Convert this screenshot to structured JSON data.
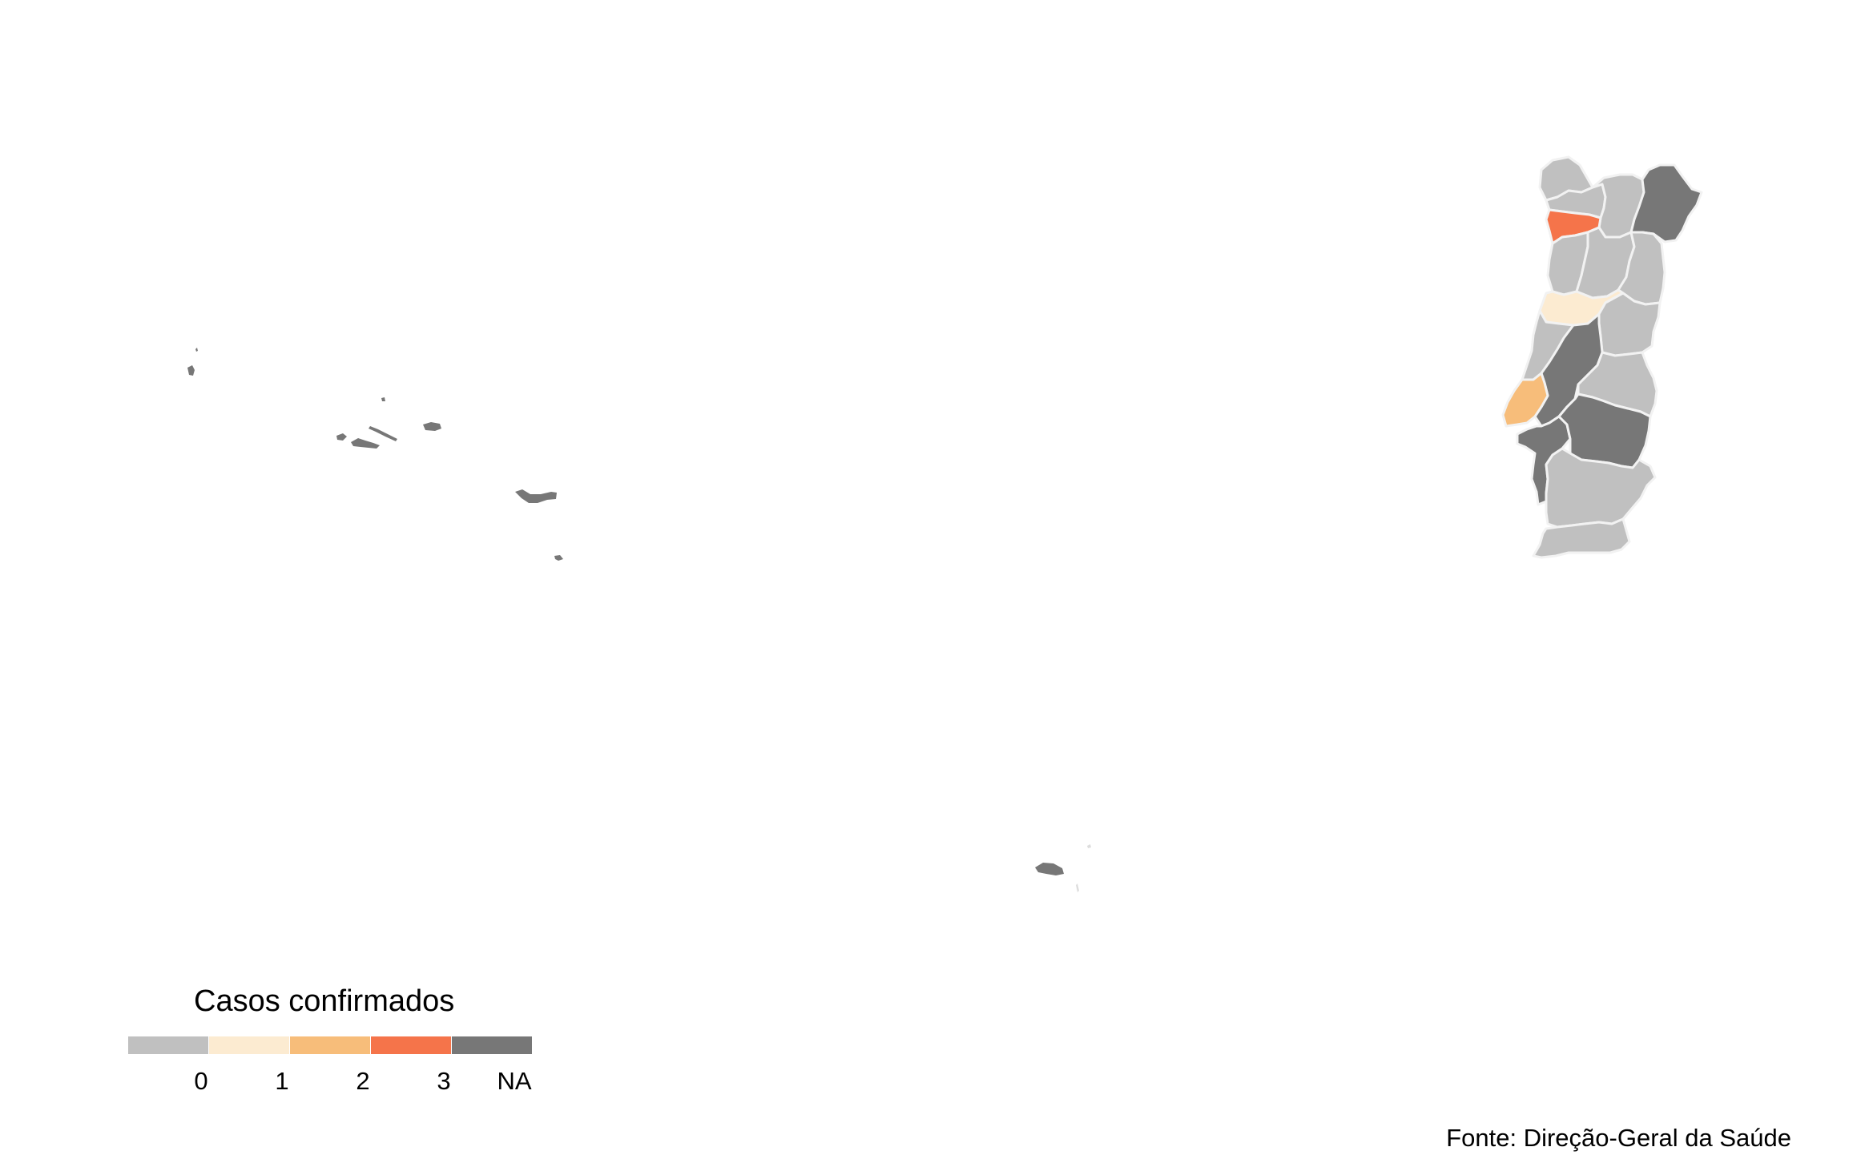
{
  "map": {
    "legend": {
      "title": "Casos confirmados",
      "items": [
        {
          "label": "",
          "color": "#c0c0c0"
        },
        {
          "label": "0",
          "color": "#fcebd1"
        },
        {
          "label": "1",
          "color": "#f7bd7a"
        },
        {
          "label": "2",
          "color": "#f5744a"
        },
        {
          "label": "3",
          "color": "#777777"
        }
      ],
      "na_label": "NA"
    },
    "caption": "Fonte: Direção-Geral da Saúde",
    "regions": [
      {
        "name": "Viana do Castelo",
        "value": 0
      },
      {
        "name": "Braga",
        "value": 0
      },
      {
        "name": "Vila Real",
        "value": 0
      },
      {
        "name": "Bragança",
        "value": "NA"
      },
      {
        "name": "Porto",
        "value": 3
      },
      {
        "name": "Aveiro",
        "value": 0
      },
      {
        "name": "Viseu",
        "value": 0
      },
      {
        "name": "Guarda",
        "value": 0
      },
      {
        "name": "Coimbra",
        "value": 1
      },
      {
        "name": "Castelo Branco",
        "value": 0
      },
      {
        "name": "Leiria",
        "value": 0
      },
      {
        "name": "Santarém",
        "value": "NA"
      },
      {
        "name": "Portalegre",
        "value": 0
      },
      {
        "name": "Lisboa",
        "value": 2
      },
      {
        "name": "Setúbal",
        "value": "NA"
      },
      {
        "name": "Évora",
        "value": "NA"
      },
      {
        "name": "Beja",
        "value": 0
      },
      {
        "name": "Faro",
        "value": 0
      },
      {
        "name": "Açores",
        "value": "NA"
      },
      {
        "name": "Madeira",
        "value": "NA"
      }
    ]
  }
}
